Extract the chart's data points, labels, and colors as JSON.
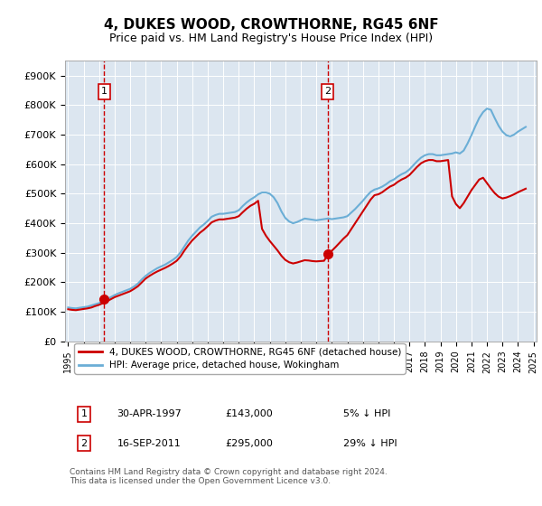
{
  "title": "4, DUKES WOOD, CROWTHORNE, RG45 6NF",
  "subtitle": "Price paid vs. HM Land Registry's House Price Index (HPI)",
  "background_color": "#dce6f0",
  "plot_bg_color": "#dce6f0",
  "ylim": [
    0,
    950000
  ],
  "yticks": [
    0,
    100000,
    200000,
    300000,
    400000,
    500000,
    600000,
    700000,
    800000,
    900000
  ],
  "ytick_labels": [
    "£0",
    "£100K",
    "£200K",
    "£300K",
    "£400K",
    "£500K",
    "£600K",
    "£700K",
    "£800K",
    "£900K"
  ],
  "xlabel_years": [
    "1995",
    "1996",
    "1997",
    "1998",
    "1999",
    "2000",
    "2001",
    "2002",
    "2003",
    "2004",
    "2005",
    "2006",
    "2007",
    "2008",
    "2009",
    "2010",
    "2011",
    "2012",
    "2013",
    "2014",
    "2015",
    "2016",
    "2017",
    "2018",
    "2019",
    "2020",
    "2021",
    "2022",
    "2023",
    "2024",
    "2025"
  ],
  "hpi_color": "#6baed6",
  "price_color": "#cc0000",
  "marker1_date": 1997.33,
  "marker1_price": 143000,
  "marker2_date": 2011.72,
  "marker2_price": 295000,
  "sale1_label": "1",
  "sale2_label": "2",
  "legend_line1": "4, DUKES WOOD, CROWTHORNE, RG45 6NF (detached house)",
  "legend_line2": "HPI: Average price, detached house, Wokingham",
  "note1_date": "30-APR-1997",
  "note1_price": "£143,000",
  "note1_hpi": "5% ↓ HPI",
  "note2_date": "16-SEP-2011",
  "note2_price": "£295,000",
  "note2_hpi": "29% ↓ HPI",
  "footer": "Contains HM Land Registry data © Crown copyright and database right 2024.\nThis data is licensed under the Open Government Licence v3.0.",
  "hpi_data": {
    "years": [
      1995.0,
      1995.25,
      1995.5,
      1995.75,
      1996.0,
      1996.25,
      1996.5,
      1996.75,
      1997.0,
      1997.25,
      1997.5,
      1997.75,
      1998.0,
      1998.25,
      1998.5,
      1998.75,
      1999.0,
      1999.25,
      1999.5,
      1999.75,
      2000.0,
      2000.25,
      2000.5,
      2000.75,
      2001.0,
      2001.25,
      2001.5,
      2001.75,
      2002.0,
      2002.25,
      2002.5,
      2002.75,
      2003.0,
      2003.25,
      2003.5,
      2003.75,
      2004.0,
      2004.25,
      2004.5,
      2004.75,
      2005.0,
      2005.25,
      2005.5,
      2005.75,
      2006.0,
      2006.25,
      2006.5,
      2006.75,
      2007.0,
      2007.25,
      2007.5,
      2007.75,
      2008.0,
      2008.25,
      2008.5,
      2008.75,
      2009.0,
      2009.25,
      2009.5,
      2009.75,
      2010.0,
      2010.25,
      2010.5,
      2010.75,
      2011.0,
      2011.25,
      2011.5,
      2011.75,
      2012.0,
      2012.25,
      2012.5,
      2012.75,
      2013.0,
      2013.25,
      2013.5,
      2013.75,
      2014.0,
      2014.25,
      2014.5,
      2014.75,
      2015.0,
      2015.25,
      2015.5,
      2015.75,
      2016.0,
      2016.25,
      2016.5,
      2016.75,
      2017.0,
      2017.25,
      2017.5,
      2017.75,
      2018.0,
      2018.25,
      2018.5,
      2018.75,
      2019.0,
      2019.25,
      2019.5,
      2019.75,
      2020.0,
      2020.25,
      2020.5,
      2020.75,
      2021.0,
      2021.25,
      2021.5,
      2021.75,
      2022.0,
      2022.25,
      2022.5,
      2022.75,
      2023.0,
      2023.25,
      2023.5,
      2023.75,
      2024.0,
      2024.25,
      2024.5
    ],
    "values": [
      115000,
      113000,
      112000,
      114000,
      116000,
      118000,
      122000,
      126000,
      130000,
      136000,
      143000,
      150000,
      157000,
      163000,
      168000,
      173000,
      178000,
      186000,
      196000,
      210000,
      222000,
      232000,
      240000,
      248000,
      254000,
      260000,
      268000,
      276000,
      286000,
      302000,
      322000,
      342000,
      358000,
      372000,
      386000,
      396000,
      408000,
      422000,
      428000,
      432000,
      432000,
      434000,
      436000,
      438000,
      444000,
      458000,
      470000,
      480000,
      488000,
      498000,
      504000,
      504000,
      500000,
      488000,
      468000,
      440000,
      418000,
      406000,
      400000,
      404000,
      410000,
      416000,
      414000,
      412000,
      410000,
      412000,
      414000,
      416000,
      414000,
      416000,
      418000,
      420000,
      424000,
      436000,
      448000,
      462000,
      476000,
      492000,
      506000,
      514000,
      518000,
      524000,
      532000,
      542000,
      548000,
      558000,
      566000,
      572000,
      582000,
      596000,
      610000,
      622000,
      630000,
      634000,
      634000,
      630000,
      630000,
      632000,
      634000,
      636000,
      640000,
      636000,
      646000,
      670000,
      698000,
      728000,
      756000,
      776000,
      788000,
      784000,
      756000,
      730000,
      710000,
      698000,
      694000,
      700000,
      710000,
      718000,
      726000
    ]
  },
  "price_data": {
    "years": [
      1995.0,
      1995.25,
      1995.5,
      1995.75,
      1996.0,
      1996.25,
      1996.5,
      1996.75,
      1997.0,
      1997.25,
      1997.5,
      1997.75,
      1998.0,
      1998.25,
      1998.5,
      1998.75,
      1999.0,
      1999.25,
      1999.5,
      1999.75,
      2000.0,
      2000.25,
      2000.5,
      2000.75,
      2001.0,
      2001.25,
      2001.5,
      2001.75,
      2002.0,
      2002.25,
      2002.5,
      2002.75,
      2003.0,
      2003.25,
      2003.5,
      2003.75,
      2004.0,
      2004.25,
      2004.5,
      2004.75,
      2005.0,
      2005.25,
      2005.5,
      2005.75,
      2006.0,
      2006.25,
      2006.5,
      2006.75,
      2007.0,
      2007.25,
      2007.5,
      2007.75,
      2008.0,
      2008.25,
      2008.5,
      2008.75,
      2009.0,
      2009.25,
      2009.5,
      2009.75,
      2010.0,
      2010.25,
      2010.5,
      2010.75,
      2011.0,
      2011.25,
      2011.5,
      2011.75,
      2012.0,
      2012.25,
      2012.5,
      2012.75,
      2013.0,
      2013.25,
      2013.5,
      2013.75,
      2014.0,
      2014.25,
      2014.5,
      2014.75,
      2015.0,
      2015.25,
      2015.5,
      2015.75,
      2016.0,
      2016.25,
      2016.5,
      2016.75,
      2017.0,
      2017.25,
      2017.5,
      2017.75,
      2018.0,
      2018.25,
      2018.5,
      2018.75,
      2019.0,
      2019.25,
      2019.5,
      2019.75,
      2020.0,
      2020.25,
      2020.5,
      2020.75,
      2021.0,
      2021.25,
      2021.5,
      2021.75,
      2022.0,
      2022.25,
      2022.5,
      2022.75,
      2023.0,
      2023.25,
      2023.5,
      2023.75,
      2024.0,
      2024.25,
      2024.5
    ],
    "values": [
      109000,
      107000,
      106000,
      108000,
      110000,
      112000,
      115000,
      120000,
      124000,
      130000,
      136000,
      143000,
      150000,
      155000,
      160000,
      165000,
      170000,
      178000,
      187000,
      200000,
      213000,
      222000,
      230000,
      237000,
      243000,
      249000,
      256000,
      264000,
      273000,
      288000,
      308000,
      326000,
      342000,
      355000,
      368000,
      378000,
      390000,
      403000,
      409000,
      413000,
      413000,
      415000,
      417000,
      419000,
      424000,
      437000,
      449000,
      459000,
      466000,
      476000,
      381000,
      358000,
      340000,
      324000,
      308000,
      290000,
      276000,
      268000,
      264000,
      267000,
      271000,
      275000,
      274000,
      272000,
      271000,
      272000,
      273000,
      295000,
      307000,
      320000,
      334000,
      348000,
      360000,
      380000,
      400000,
      420000,
      440000,
      460000,
      480000,
      495000,
      498000,
      505000,
      515000,
      524000,
      530000,
      540000,
      548000,
      554000,
      563000,
      577000,
      591000,
      603000,
      610000,
      614000,
      614000,
      610000,
      610000,
      612000,
      614000,
      491000,
      465000,
      451000,
      468000,
      490000,
      512000,
      530000,
      548000,
      554000,
      536000,
      518000,
      502000,
      490000,
      484000,
      487000,
      492000,
      498000,
      505000,
      511000,
      517000
    ]
  }
}
